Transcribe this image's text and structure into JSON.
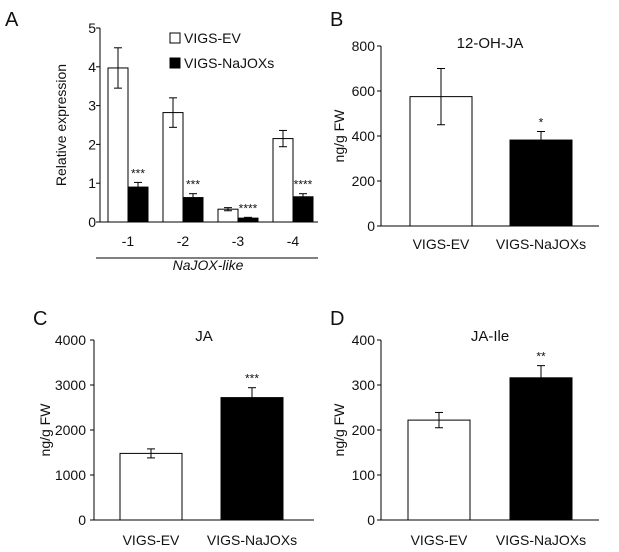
{
  "chart_data": [
    {
      "panel": "A",
      "type": "bar",
      "title": "",
      "ylabel": "Relative expression",
      "xlabel": "NaJOX-like",
      "ylim": [
        0,
        5
      ],
      "yticks": [
        "0",
        "1",
        "2",
        "3",
        "4",
        "5"
      ],
      "categories": [
        "-1",
        "-2",
        "-3",
        "-4"
      ],
      "legend_position": "top-right",
      "series": [
        {
          "name": "VIGS-EV",
          "fill": "#ffffff",
          "values": [
            3.97,
            2.82,
            0.33,
            2.15
          ],
          "errors": [
            0.52,
            0.38,
            0.04,
            0.21
          ],
          "sig": [
            "",
            "",
            "",
            ""
          ]
        },
        {
          "name": "VIGS-NaJOXs",
          "fill": "#000000",
          "values": [
            0.9,
            0.63,
            0.1,
            0.65
          ],
          "errors": [
            0.12,
            0.1,
            0.02,
            0.08
          ],
          "sig": [
            "***",
            "***",
            "****",
            "****"
          ]
        }
      ]
    },
    {
      "panel": "B",
      "type": "bar",
      "title": "12-OH-JA",
      "ylabel": "ng/g FW",
      "ylim": [
        0,
        800
      ],
      "yticks": [
        "0",
        "200",
        "400",
        "600",
        "800"
      ],
      "categories": [
        "VIGS-EV",
        "VIGS-NaJOXs"
      ],
      "fills": [
        "#ffffff",
        "#000000"
      ],
      "values": [
        575,
        382
      ],
      "errors": [
        125,
        38
      ],
      "sig": [
        "",
        "*"
      ]
    },
    {
      "panel": "C",
      "type": "bar",
      "title": "JA",
      "ylabel": "ng/g FW",
      "ylim": [
        0,
        4000
      ],
      "yticks": [
        "0",
        "1000",
        "2000",
        "3000",
        "4000"
      ],
      "categories": [
        "VIGS-EV",
        "VIGS-NaJOXs"
      ],
      "fills": [
        "#ffffff",
        "#000000"
      ],
      "values": [
        1480,
        2720
      ],
      "errors": [
        100,
        220
      ],
      "sig": [
        "",
        "***"
      ]
    },
    {
      "panel": "D",
      "type": "bar",
      "title": "JA-Ile",
      "ylabel": "ng/g FW",
      "ylim": [
        0,
        400
      ],
      "yticks": [
        "0",
        "100",
        "200",
        "300",
        "400"
      ],
      "categories": [
        "VIGS-EV",
        "VIGS-NaJOXs"
      ],
      "fills": [
        "#ffffff",
        "#000000"
      ],
      "values": [
        222,
        316
      ],
      "errors": [
        17,
        27
      ],
      "sig": [
        "",
        "**"
      ]
    }
  ]
}
